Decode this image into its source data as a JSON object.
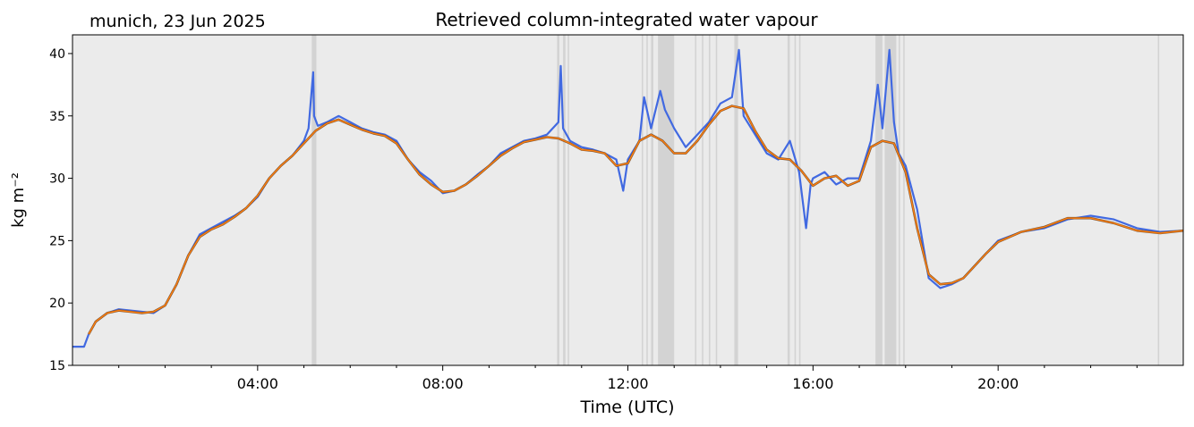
{
  "location_date": "munich, 23 Jun 2025",
  "colors": {
    "plot_bg": "#ebebeb",
    "raw_series": "#4169e1",
    "smooth_series": "#ff7f0e",
    "flag_band": "#d3d3d3"
  },
  "chart_data": {
    "type": "line",
    "title": "Retrieved column-integrated water vapour",
    "xlabel": "Time (UTC)",
    "ylabel": "kg m⁻²",
    "xlim_hours": [
      0,
      24
    ],
    "ylim": [
      15,
      41.5
    ],
    "x_ticks": [
      "04:00",
      "08:00",
      "12:00",
      "16:00",
      "20:00"
    ],
    "x_tick_hours": [
      4,
      8,
      12,
      16,
      20
    ],
    "y_ticks": [
      15,
      20,
      25,
      30,
      35,
      40
    ],
    "grid": false,
    "legend": "none",
    "flagged_intervals_hours": [
      [
        5.17,
        5.27
      ],
      [
        10.47,
        10.52
      ],
      [
        10.6,
        10.65
      ],
      [
        10.7,
        10.73
      ],
      [
        12.3,
        12.33
      ],
      [
        12.4,
        12.43
      ],
      [
        12.5,
        12.55
      ],
      [
        12.65,
        13.0
      ],
      [
        13.45,
        13.48
      ],
      [
        13.6,
        13.63
      ],
      [
        13.75,
        13.78
      ],
      [
        13.9,
        13.93
      ],
      [
        14.3,
        14.38
      ],
      [
        15.45,
        15.5
      ],
      [
        15.6,
        15.63
      ],
      [
        15.7,
        15.73
      ],
      [
        17.35,
        17.5
      ],
      [
        17.55,
        17.8
      ],
      [
        17.85,
        17.88
      ],
      [
        17.95,
        17.98
      ],
      [
        23.45,
        23.48
      ]
    ],
    "series": [
      {
        "kind": "raw",
        "x": [
          0.0,
          0.25,
          0.35,
          0.5,
          0.75,
          1.0,
          1.25,
          1.5,
          1.75,
          2.0,
          2.25,
          2.5,
          2.75,
          3.0,
          3.25,
          3.5,
          3.75,
          4.0,
          4.25,
          4.5,
          4.75,
          5.0,
          5.1,
          5.2,
          5.22,
          5.3,
          5.5,
          5.75,
          6.0,
          6.25,
          6.5,
          6.75,
          7.0,
          7.25,
          7.5,
          7.75,
          8.0,
          8.25,
          8.5,
          8.75,
          9.0,
          9.25,
          9.5,
          9.75,
          10.0,
          10.25,
          10.5,
          10.55,
          10.6,
          10.75,
          11.0,
          11.25,
          11.5,
          11.75,
          11.9,
          12.0,
          12.25,
          12.35,
          12.5,
          12.7,
          12.8,
          13.0,
          13.25,
          13.5,
          13.75,
          14.0,
          14.25,
          14.4,
          14.5,
          14.75,
          15.0,
          15.25,
          15.5,
          15.7,
          15.85,
          15.95,
          16.0,
          16.25,
          16.5,
          16.75,
          17.0,
          17.25,
          17.4,
          17.5,
          17.65,
          17.75,
          17.85,
          18.0,
          18.25,
          18.5,
          18.75,
          19.0,
          19.25,
          19.5,
          19.75,
          20.0,
          20.5,
          21.0,
          21.5,
          22.0,
          22.5,
          23.0,
          23.5,
          24.0
        ],
        "y": [
          16.5,
          16.5,
          17.5,
          18.5,
          19.2,
          19.5,
          19.4,
          19.3,
          19.2,
          19.8,
          21.5,
          23.8,
          25.5,
          26.0,
          26.5,
          27.0,
          27.6,
          28.5,
          30.0,
          31.0,
          31.8,
          33.0,
          34.0,
          38.5,
          35.0,
          34.2,
          34.5,
          35.0,
          34.5,
          34.0,
          33.7,
          33.5,
          33.0,
          31.5,
          30.5,
          29.8,
          28.8,
          29.0,
          29.5,
          30.3,
          31.0,
          32.0,
          32.5,
          33.0,
          33.2,
          33.5,
          34.5,
          39.0,
          34.0,
          33.0,
          32.5,
          32.3,
          32.0,
          31.5,
          29.0,
          31.5,
          33.0,
          36.5,
          34.0,
          37.0,
          35.5,
          34.0,
          32.5,
          33.5,
          34.5,
          36.0,
          36.5,
          40.3,
          35.0,
          33.5,
          32.0,
          31.5,
          33.0,
          30.5,
          26.0,
          29.5,
          30.0,
          30.5,
          29.5,
          30.0,
          30.0,
          33.0,
          37.5,
          34.0,
          40.3,
          34.5,
          32.0,
          31.0,
          27.5,
          22.0,
          21.2,
          21.5,
          22.0,
          23.0,
          24.0,
          25.0,
          25.7,
          26.0,
          26.7,
          27.0,
          26.7,
          26.0,
          25.7,
          25.8
        ]
      },
      {
        "kind": "smoothed",
        "x": [
          0.35,
          0.5,
          0.75,
          1.0,
          1.25,
          1.5,
          1.75,
          2.0,
          2.25,
          2.5,
          2.75,
          3.0,
          3.25,
          3.5,
          3.75,
          4.0,
          4.25,
          4.5,
          4.75,
          5.0,
          5.25,
          5.5,
          5.75,
          6.0,
          6.25,
          6.5,
          6.75,
          7.0,
          7.25,
          7.5,
          7.75,
          8.0,
          8.25,
          8.5,
          8.75,
          9.0,
          9.25,
          9.5,
          9.75,
          10.0,
          10.25,
          10.5,
          10.75,
          11.0,
          11.25,
          11.5,
          11.75,
          12.0,
          12.25,
          12.5,
          12.75,
          13.0,
          13.25,
          13.5,
          13.75,
          14.0,
          14.25,
          14.5,
          14.75,
          15.0,
          15.25,
          15.5,
          15.75,
          16.0,
          16.25,
          16.5,
          16.75,
          17.0,
          17.25,
          17.5,
          17.75,
          18.0,
          18.25,
          18.5,
          18.75,
          19.0,
          19.25,
          19.5,
          19.75,
          20.0,
          20.5,
          21.0,
          21.5,
          22.0,
          22.5,
          23.0,
          23.5,
          24.0
        ],
        "y": [
          17.5,
          18.5,
          19.2,
          19.4,
          19.3,
          19.2,
          19.3,
          19.8,
          21.5,
          23.8,
          25.3,
          25.9,
          26.3,
          26.9,
          27.6,
          28.6,
          30.0,
          31.0,
          31.8,
          32.8,
          33.8,
          34.4,
          34.7,
          34.3,
          33.9,
          33.6,
          33.4,
          32.8,
          31.5,
          30.3,
          29.5,
          28.9,
          29.0,
          29.5,
          30.2,
          31.0,
          31.8,
          32.4,
          32.9,
          33.1,
          33.3,
          33.2,
          32.8,
          32.3,
          32.2,
          32.0,
          31.0,
          31.2,
          33.0,
          33.5,
          33.0,
          32.0,
          32.0,
          33.0,
          34.3,
          35.4,
          35.8,
          35.6,
          33.8,
          32.3,
          31.6,
          31.5,
          30.6,
          29.4,
          30.0,
          30.2,
          29.4,
          29.8,
          32.5,
          33.0,
          32.8,
          30.5,
          26.0,
          22.3,
          21.5,
          21.6,
          22.0,
          23.0,
          24.0,
          24.9,
          25.7,
          26.1,
          26.8,
          26.8,
          26.4,
          25.8,
          25.6,
          25.8
        ]
      }
    ]
  }
}
